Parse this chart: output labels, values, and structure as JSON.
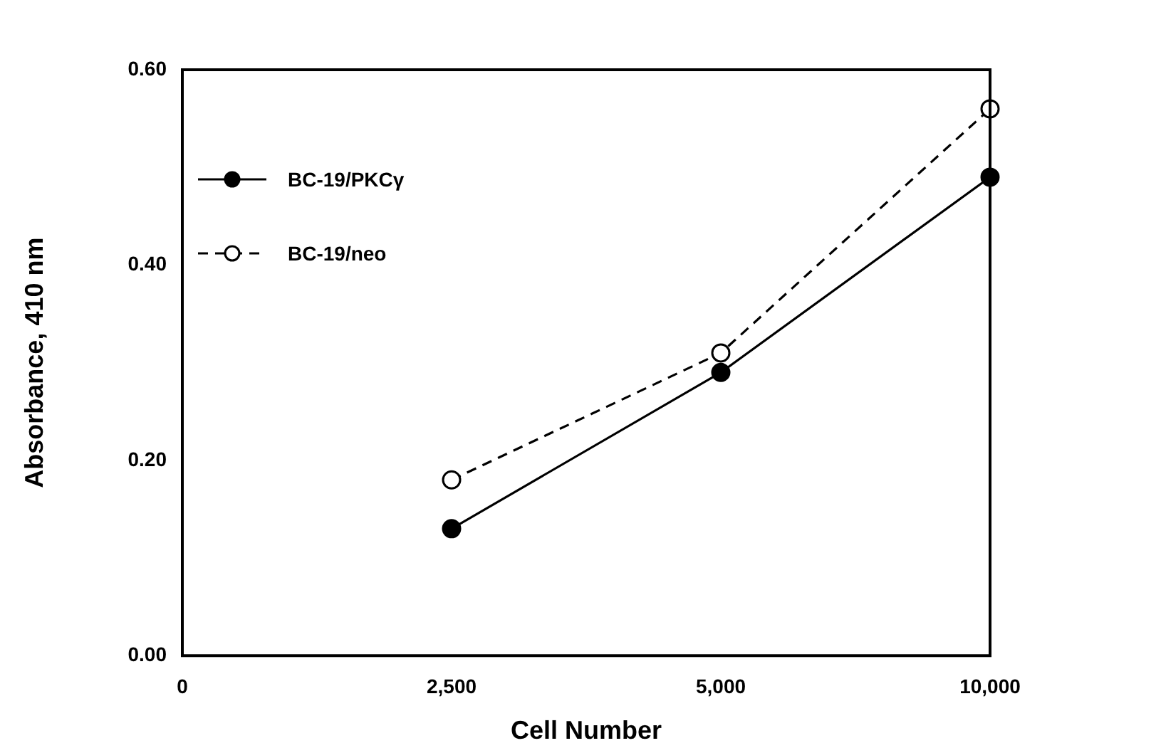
{
  "chart_data": {
    "type": "line",
    "xlabel": "Cell Number",
    "ylabel": "Absorbance, 410 nm",
    "categories": [
      "0",
      "2,500",
      "5,000",
      "10,000"
    ],
    "series": [
      {
        "name": "BC-19/PKCγ",
        "color": "#000000",
        "values": [
          null,
          0.13,
          0.29,
          0.49
        ],
        "line_style": "solid",
        "marker": "circle"
      },
      {
        "name": "BC-19/neo",
        "color": "#000000",
        "values": [
          null,
          0.18,
          0.31,
          0.56
        ],
        "line_style": "dashed",
        "marker": "circle"
      }
    ],
    "ylim": [
      0,
      0.6
    ],
    "yticks": [
      {
        "value": 0,
        "label": "0.00"
      },
      {
        "value": 0.2,
        "label": "0.20"
      },
      {
        "value": 0.4,
        "label": "0.40"
      },
      {
        "value": 0.6,
        "label": "0.60"
      }
    ],
    "grid": false,
    "legend": "top left"
  }
}
